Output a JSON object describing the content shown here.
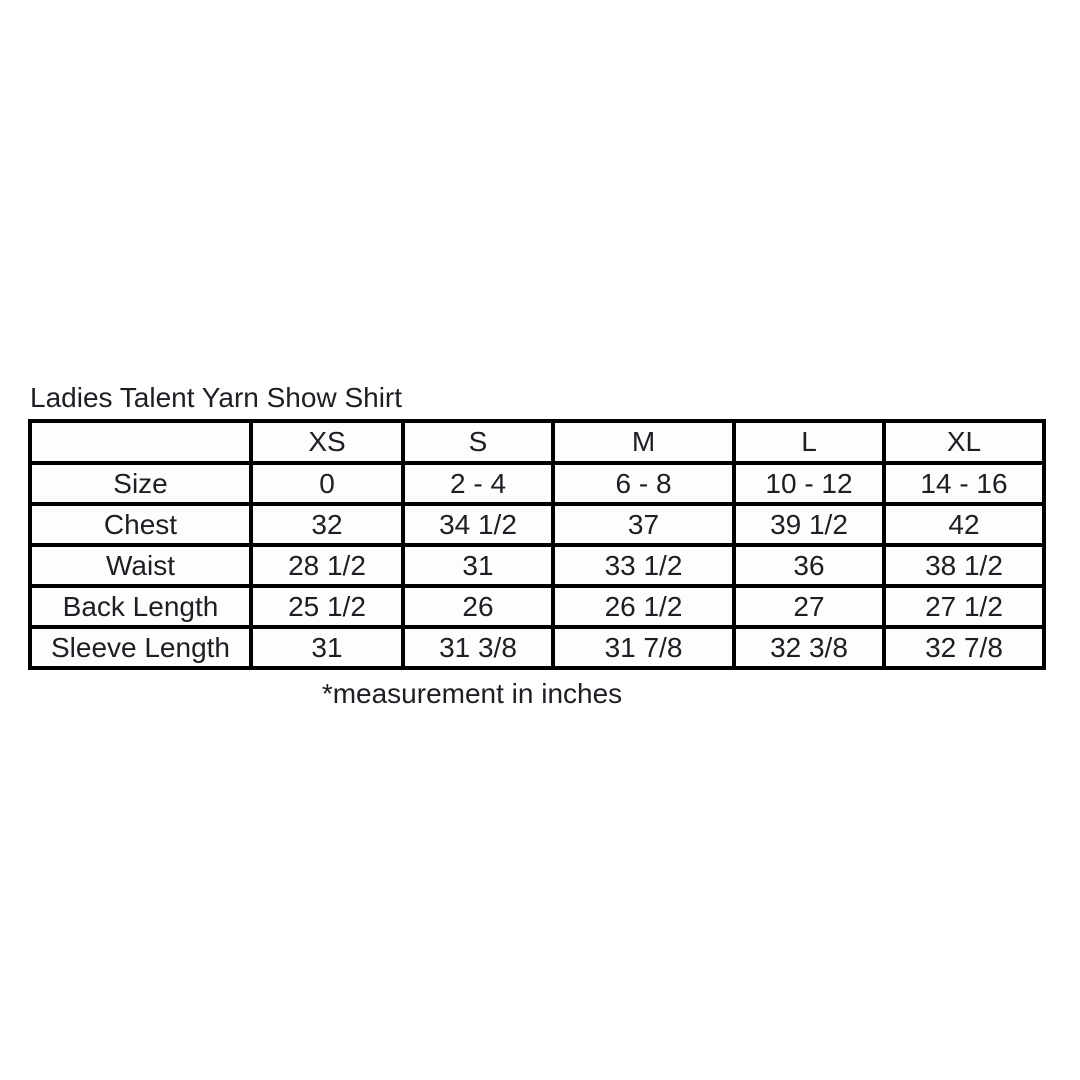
{
  "title": "Ladies Talent Yarn Show Shirt",
  "footnote": "*measurement in inches",
  "colors": {
    "text": "#1e1e24",
    "border": "#000000",
    "background": "#ffffff"
  },
  "table": {
    "columns": [
      "",
      "XS",
      "S",
      "M",
      "L",
      "XL"
    ],
    "rows": [
      {
        "label": "Size",
        "values": [
          "0",
          "2 - 4",
          "6 - 8",
          "10 - 12",
          "14 - 16"
        ]
      },
      {
        "label": "Chest",
        "values": [
          "32",
          "34 1/2",
          "37",
          "39 1/2",
          "42"
        ]
      },
      {
        "label": "Waist",
        "values": [
          "28 1/2",
          "31",
          "33 1/2",
          "36",
          "38 1/2"
        ]
      },
      {
        "label": "Back Length",
        "values": [
          "25 1/2",
          "26",
          "26 1/2",
          "27",
          "27 1/2"
        ]
      },
      {
        "label": "Sleeve Length",
        "values": [
          "31",
          "31 3/8",
          "31 7/8",
          "32 3/8",
          "32 7/8"
        ]
      }
    ]
  }
}
